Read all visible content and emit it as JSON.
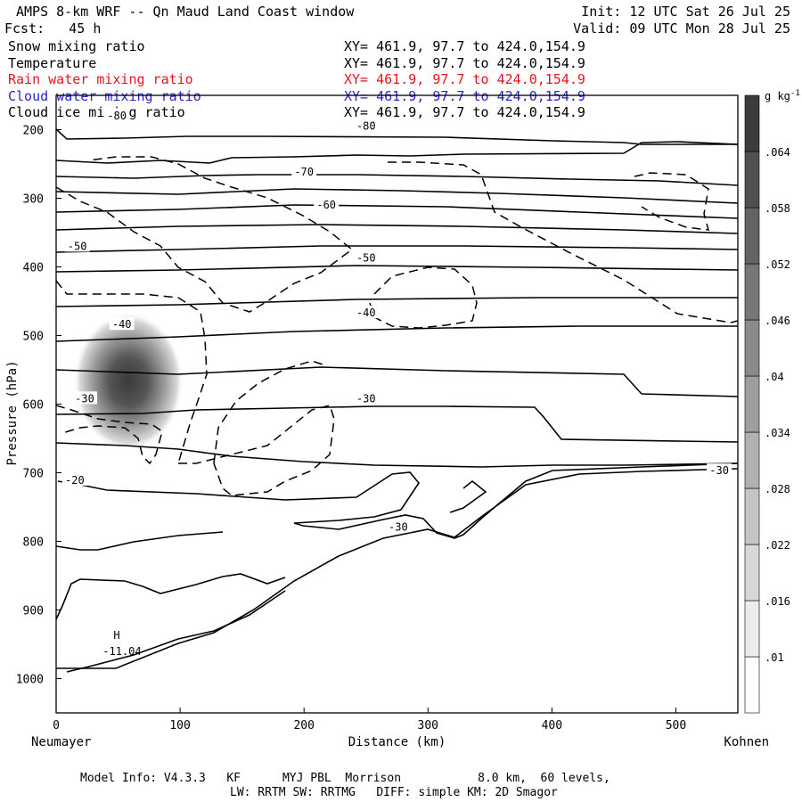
{
  "header": {
    "title": "AMPS 8-km WRF -- Qn Maud Land Coast window",
    "init": "Init: 12 UTC Sat 26 Jul 25",
    "forecast": "Fcst:   45 h",
    "valid": "Valid: 09 UTC Mon 28 Jul 25"
  },
  "fields": [
    {
      "name": "Snow mixing ratio",
      "xy": "XY= 461.9, 97.7 to 424.0,154.9",
      "color": "#000000"
    },
    {
      "name": "Temperature",
      "xy": "XY= 461.9, 97.7 to 424.0,154.9",
      "color": "#000000"
    },
    {
      "name": "Rain water mixing ratio",
      "xy": "XY= 461.9, 97.7 to 424.0,154.9",
      "color": "#e8141e"
    },
    {
      "name": "Cloud water mixing ratio",
      "xy": "XY= 461.9, 97.7 to 424.0,154.9",
      "color": "#2828c8"
    },
    {
      "name": "Cloud ice mixing ratio",
      "xy": "XY= 461.9, 97.7 to 424.0,154.9",
      "color": "#000000"
    }
  ],
  "footer": {
    "line1": "Model Info: V4.3.3   KF      MYJ PBL  Morrison           8.0 km,  60 levels,",
    "line2": "LW: RRTM SW: RRTMG   DIFF: simple KM: 2D Smagor"
  },
  "chart_data": {
    "type": "contour",
    "xlabel": "Distance (km)",
    "ylabel": "Pressure (hPa)",
    "x_ticks": [
      0,
      100,
      200,
      300,
      400,
      500
    ],
    "y_ticks": [
      200,
      300,
      400,
      500,
      600,
      700,
      800,
      900,
      1000
    ],
    "xlim": [
      0,
      550
    ],
    "ylim": [
      1050,
      150
    ],
    "x_end_labels": {
      "left": "Neumayer",
      "right": "Kohnen"
    },
    "colorbar": {
      "unit": "g kg",
      "unit_exp": "-1",
      "ticks": [
        ".01",
        ".016",
        ".022",
        ".028",
        ".034",
        ".04",
        ".046",
        ".052",
        ".058",
        ".064"
      ]
    },
    "temperature_labels": [
      {
        "text": "-80",
        "x": 49,
        "p": 180
      },
      {
        "text": "-80",
        "x": 250,
        "p": 195
      },
      {
        "text": "-70",
        "x": 200,
        "p": 262
      },
      {
        "text": "-60",
        "x": 218,
        "p": 310
      },
      {
        "text": "-50",
        "x": 17,
        "p": 370
      },
      {
        "text": "-50",
        "x": 250,
        "p": 387
      },
      {
        "text": "-40",
        "x": 53,
        "p": 484
      },
      {
        "text": "-40",
        "x": 250,
        "p": 467
      },
      {
        "text": "-30",
        "x": 23,
        "p": 592
      },
      {
        "text": "-30",
        "x": 250,
        "p": 592
      },
      {
        "text": "-30",
        "x": 535,
        "p": 697
      },
      {
        "text": "-30",
        "x": 276,
        "p": 779
      },
      {
        "text": "-20",
        "x": 15,
        "p": 711
      }
    ],
    "extremum": {
      "marker": "H",
      "value": "-11.04",
      "x": 51,
      "p": 968
    },
    "snow_max": {
      "x": 67,
      "p": 580,
      "value_gkg": 0.07
    }
  }
}
